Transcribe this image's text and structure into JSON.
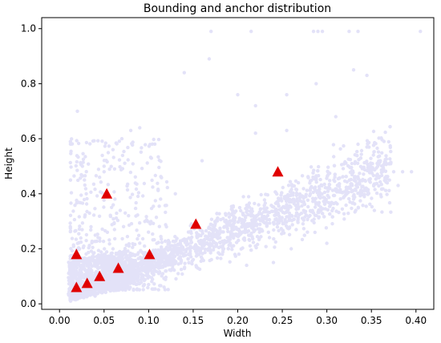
{
  "chart_data": {
    "type": "scatter",
    "title": "Bounding and anchor distribution",
    "xlabel": "Width",
    "ylabel": "Height",
    "xlim": [
      -0.02,
      0.42
    ],
    "ylim": [
      -0.02,
      1.04
    ],
    "xticks": [
      "0.00",
      "0.05",
      "0.10",
      "0.15",
      "0.20",
      "0.25",
      "0.30",
      "0.35",
      "0.40"
    ],
    "yticks": [
      "0.0",
      "0.2",
      "0.4",
      "0.6",
      "0.8",
      "1.0"
    ],
    "grid": false,
    "legend": "none",
    "colors": {
      "boxes": "#e3e2f8",
      "anchors": "#e00000"
    },
    "series": [
      {
        "marker": "dot",
        "points": [
          [
            0.17,
            0.99
          ],
          [
            0.215,
            0.99
          ],
          [
            0.285,
            0.99
          ],
          [
            0.29,
            0.99
          ],
          [
            0.295,
            0.99
          ],
          [
            0.325,
            0.99
          ],
          [
            0.335,
            0.99
          ],
          [
            0.405,
            0.99
          ],
          [
            0.168,
            0.89
          ],
          [
            0.288,
            0.8
          ],
          [
            0.33,
            0.85
          ],
          [
            0.345,
            0.83
          ],
          [
            0.14,
            0.84
          ],
          [
            0.2,
            0.76
          ],
          [
            0.255,
            0.76
          ],
          [
            0.22,
            0.72
          ],
          [
            0.255,
            0.63
          ],
          [
            0.31,
            0.68
          ],
          [
            0.335,
            0.58
          ],
          [
            0.345,
            0.57
          ],
          [
            0.375,
            0.48
          ],
          [
            0.385,
            0.48
          ],
          [
            0.395,
            0.48
          ],
          [
            0.36,
            0.52
          ],
          [
            0.38,
            0.43
          ],
          [
            0.16,
            0.52
          ],
          [
            0.22,
            0.62
          ],
          [
            0.08,
            0.63
          ],
          [
            0.09,
            0.64
          ],
          [
            0.07,
            0.6
          ],
          [
            0.06,
            0.56
          ],
          [
            0.05,
            0.5
          ],
          [
            0.028,
            0.45
          ],
          [
            0.03,
            0.4
          ],
          [
            0.045,
            0.46
          ],
          [
            0.05,
            0.48
          ],
          [
            0.12,
            0.28
          ],
          [
            0.21,
            0.14
          ],
          [
            0.24,
            0.15
          ],
          [
            0.26,
            0.2
          ],
          [
            0.3,
            0.22
          ],
          [
            0.03,
            0.23
          ],
          [
            0.02,
            0.7
          ],
          [
            0.04,
            0.05
          ],
          [
            0.02,
            0.02
          ],
          [
            0.06,
            0.2
          ],
          [
            0.13,
            0.4
          ],
          [
            0.18,
            0.24
          ]
        ]
      },
      {
        "marker": "triangle",
        "points": [
          [
            0.019,
            0.06
          ],
          [
            0.019,
            0.18
          ],
          [
            0.031,
            0.075
          ],
          [
            0.045,
            0.1
          ],
          [
            0.053,
            0.4
          ],
          [
            0.066,
            0.13
          ],
          [
            0.101,
            0.18
          ],
          [
            0.153,
            0.29
          ],
          [
            0.245,
            0.48
          ]
        ]
      }
    ]
  }
}
